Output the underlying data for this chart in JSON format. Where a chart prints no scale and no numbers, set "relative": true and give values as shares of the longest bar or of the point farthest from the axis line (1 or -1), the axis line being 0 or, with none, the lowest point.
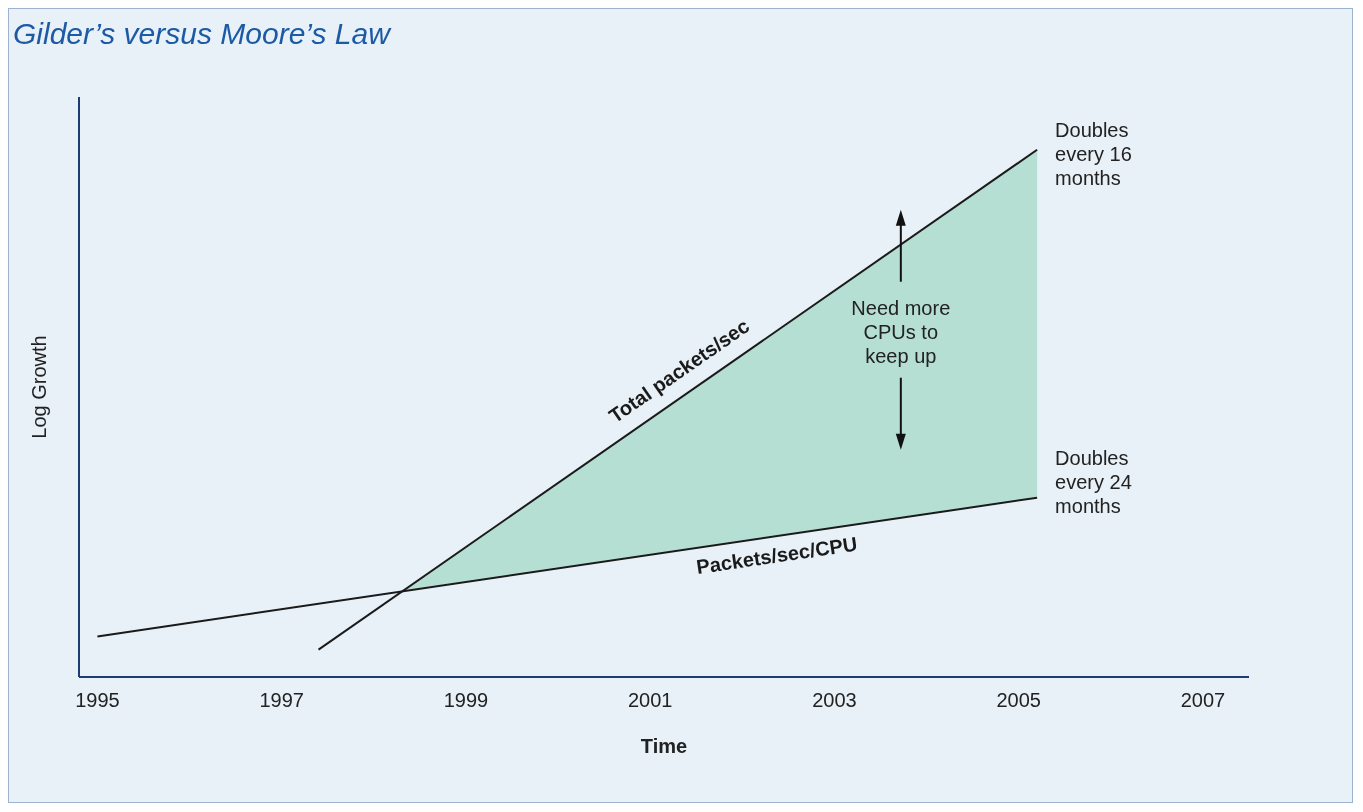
{
  "chart_data": {
    "type": "line",
    "title": "Gilder’s versus Moore’s Law",
    "xlabel": "Time",
    "ylabel": "Log Growth",
    "relative": true,
    "xlim": [
      1994.8,
      2007.5
    ],
    "xticks": [
      1995,
      1997,
      1999,
      2001,
      2003,
      2005,
      2007
    ],
    "marker": "none",
    "line_style": "solid",
    "series": [
      {
        "name": "Total packets/sec",
        "color": "#1a1a1a",
        "x": [
          1997.4,
          2005.2
        ],
        "values": [
          0.052,
          1.0
        ]
      },
      {
        "name": "Packets/sec/CPU",
        "color": "#1a1a1a",
        "x": [
          1995.0,
          2005.2
        ],
        "values": [
          0.077,
          0.34
        ]
      }
    ],
    "annotations": [
      "Doubles every 16 months",
      "Doubles every 24 months",
      "Need more CPUs to keep up"
    ]
  }
}
